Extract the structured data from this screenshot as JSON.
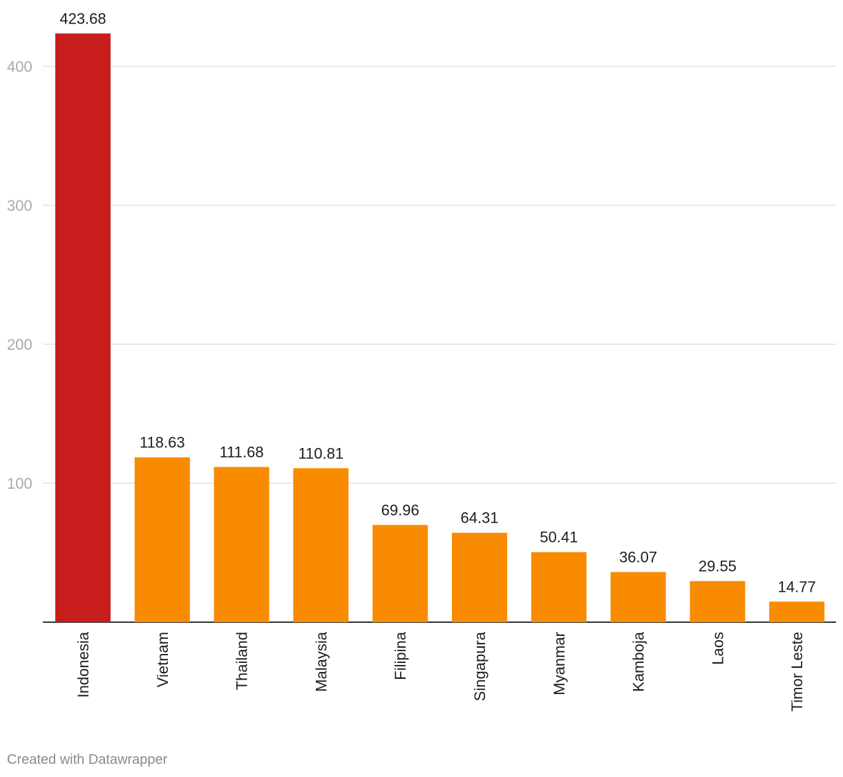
{
  "chart_data": {
    "type": "bar",
    "title": "",
    "xlabel": "",
    "ylabel": "",
    "categories": [
      "Indonesia",
      "Vietnam",
      "Thailand",
      "Malaysia",
      "Filipina",
      "Singapura",
      "Myanmar",
      "Kamboja",
      "Laos",
      "Timor Leste"
    ],
    "values": [
      423.68,
      118.63,
      111.68,
      110.81,
      69.96,
      64.31,
      50.41,
      36.07,
      29.55,
      14.77
    ],
    "value_labels": [
      "423.68",
      "118.63",
      "111.68",
      "110.81",
      "69.96",
      "64.31",
      "50.41",
      "36.07",
      "29.55",
      "14.77"
    ],
    "ylim": [
      0,
      440
    ],
    "yticks": [
      100,
      200,
      300,
      400
    ],
    "grid": true,
    "legend": "none",
    "colors": {
      "highlight": "#c71e1d",
      "bar": "#f98b00",
      "grid": "#e2e2e2",
      "baseline": "#333333"
    },
    "highlight_index": 0
  },
  "footer": {
    "credit": "Created with Datawrapper"
  }
}
